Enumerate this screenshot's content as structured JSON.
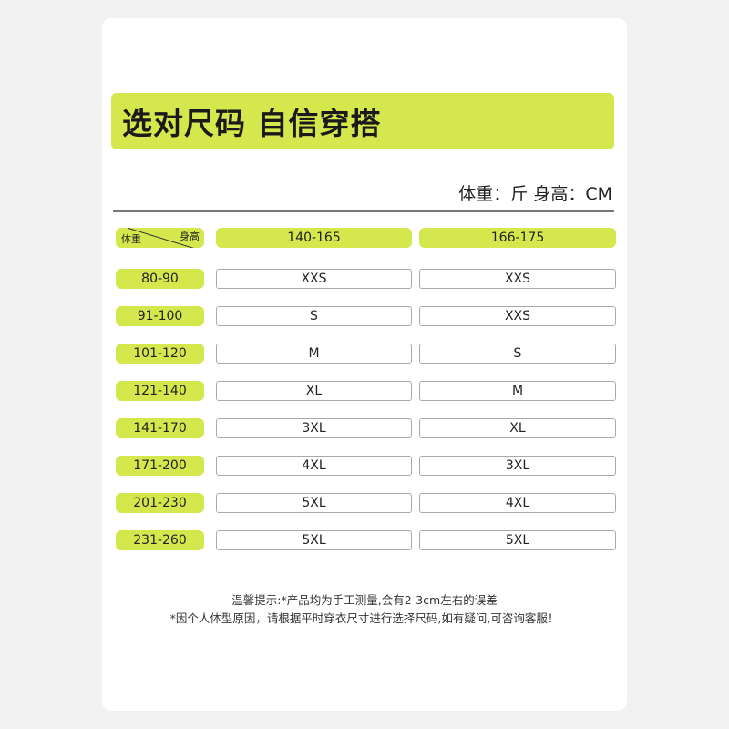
{
  "title": "选对尺码 自信穿搭",
  "units": "体重：斤  身高：CM",
  "corner": {
    "weight": "体重",
    "height": "身高"
  },
  "columns": [
    "140-165",
    "166-175"
  ],
  "rows": [
    {
      "weight": "80-90",
      "sizes": [
        "XXS",
        "XXS"
      ]
    },
    {
      "weight": "91-100",
      "sizes": [
        "S",
        "XXS"
      ]
    },
    {
      "weight": "101-120",
      "sizes": [
        "M",
        "S"
      ]
    },
    {
      "weight": "121-140",
      "sizes": [
        "XL",
        "M"
      ]
    },
    {
      "weight": "141-170",
      "sizes": [
        "3XL",
        "XL"
      ]
    },
    {
      "weight": "171-200",
      "sizes": [
        "4XL",
        "3XL"
      ]
    },
    {
      "weight": "201-230",
      "sizes": [
        "5XL",
        "4XL"
      ]
    },
    {
      "weight": "231-260",
      "sizes": [
        "5XL",
        "5XL"
      ]
    }
  ],
  "notes": [
    "温馨提示:*产品均为手工测量,会有2-3cm左右的误差",
    "*因个人体型原因，请根据平时穿衣尺寸进行选择尺码,如有疑问,可咨询客服！"
  ],
  "colors": {
    "accent": "#d4e74c"
  }
}
